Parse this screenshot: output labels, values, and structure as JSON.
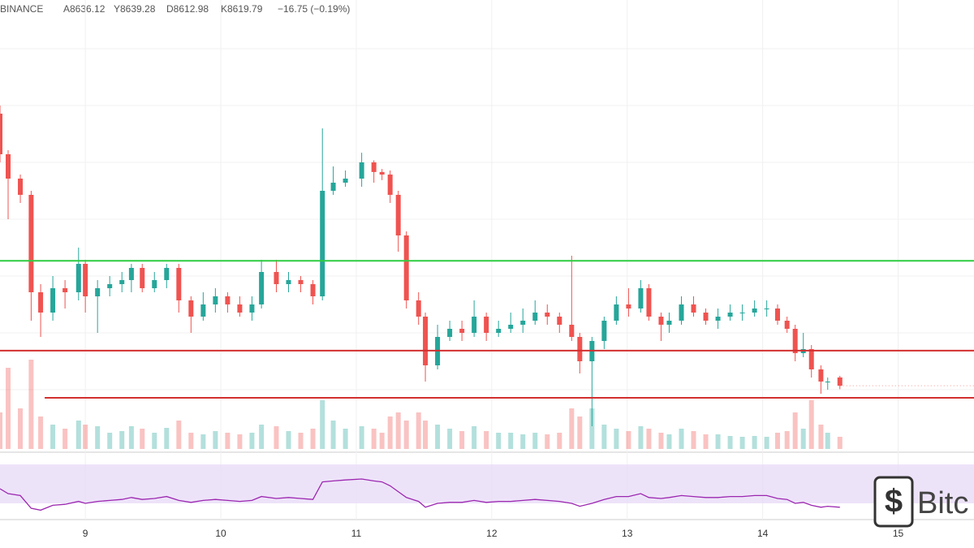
{
  "exchange": "BINANCE",
  "ohlc_header": {
    "open": "A8636.12",
    "high": "Y8639.28",
    "low": "D8612.98",
    "close": "K8619.79",
    "change": "−16.75 (−0.19%)"
  },
  "logo_text": "Bitc",
  "chart_data": {
    "type": "candlestick",
    "up_color": "#26a69a",
    "down_color": "#ef5350",
    "xlim": [
      8.37,
      15.56
    ],
    "xticks": [
      9,
      10,
      11,
      12,
      13,
      14,
      15
    ],
    "ylim": [
      8492,
      9380
    ],
    "grid": true,
    "x": [
      8.37,
      8.43,
      8.52,
      8.6,
      8.67,
      8.76,
      8.85,
      8.95,
      9.0,
      9.09,
      9.18,
      9.27,
      9.34,
      9.42,
      9.51,
      9.6,
      9.69,
      9.78,
      9.87,
      9.96,
      10.05,
      10.14,
      10.23,
      10.3,
      10.41,
      10.5,
      10.59,
      10.68,
      10.75,
      10.83,
      10.92,
      11.04,
      11.13,
      11.19,
      11.25,
      11.31,
      11.37,
      11.46,
      11.51,
      11.6,
      11.69,
      11.78,
      11.87,
      11.96,
      12.05,
      12.14,
      12.23,
      12.32,
      12.41,
      12.5,
      12.59,
      12.65,
      12.74,
      12.83,
      12.92,
      13.01,
      13.1,
      13.16,
      13.25,
      13.31,
      13.4,
      13.49,
      13.58,
      13.67,
      13.76,
      13.85,
      13.94,
      14.03,
      14.11,
      14.18,
      14.24,
      14.3,
      14.36,
      14.43,
      14.48,
      14.57
    ],
    "open": [
      9156,
      9076,
      9028,
      8996,
      8804,
      8764,
      8812,
      8804,
      8860,
      8796,
      8812,
      8820,
      8828,
      8852,
      8812,
      8828,
      8852,
      8788,
      8756,
      8780,
      8796,
      8780,
      8764,
      8780,
      8844,
      8820,
      8828,
      8820,
      8796,
      9004,
      9020,
      9028,
      9060,
      9041,
      9036,
      8996,
      8916,
      8788,
      8756,
      8660,
      8716,
      8732,
      8724,
      8756,
      8724,
      8732,
      8740,
      8748,
      8764,
      8756,
      8740,
      8716,
      8668,
      8708,
      8748,
      8780,
      8772,
      8812,
      8756,
      8740,
      8748,
      8780,
      8764,
      8748,
      8756,
      8764,
      8764,
      8772,
      8772,
      8748,
      8732,
      8684,
      8692,
      8652,
      8628,
      8636.12
    ],
    "high": [
      9172,
      9084,
      9036,
      9004,
      8820,
      8836,
      8828,
      8892,
      8868,
      8828,
      8836,
      8844,
      8860,
      8860,
      8844,
      8860,
      8860,
      8796,
      8804,
      8812,
      8804,
      8796,
      8796,
      8868,
      8868,
      8844,
      8836,
      8828,
      9127,
      9052,
      9044,
      9079,
      9064,
      9047,
      9044,
      9004,
      8924,
      8804,
      8764,
      8740,
      8748,
      8748,
      8788,
      8764,
      8748,
      8764,
      8772,
      8788,
      8780,
      8764,
      8876,
      8724,
      8716,
      8756,
      8796,
      8812,
      8828,
      8820,
      8764,
      8764,
      8796,
      8796,
      8772,
      8772,
      8780,
      8780,
      8788,
      8788,
      8780,
      8756,
      8740,
      8724,
      8700,
      8660,
      8636,
      8639.28
    ],
    "low": [
      9060,
      8948,
      8980,
      8748,
      8716,
      8748,
      8772,
      8788,
      8764,
      8724,
      8796,
      8804,
      8804,
      8804,
      8804,
      8812,
      8764,
      8724,
      8748,
      8764,
      8764,
      8756,
      8748,
      8772,
      8804,
      8804,
      8804,
      8780,
      8788,
      8996,
      9012,
      9012,
      9020,
      9025,
      8980,
      8884,
      8772,
      8740,
      8628,
      8652,
      8708,
      8708,
      8716,
      8708,
      8716,
      8724,
      8724,
      8740,
      8740,
      8724,
      8708,
      8644,
      8540,
      8692,
      8740,
      8756,
      8764,
      8748,
      8708,
      8724,
      8740,
      8756,
      8740,
      8732,
      8748,
      8748,
      8756,
      8756,
      8740,
      8724,
      8668,
      8676,
      8636,
      8604,
      8612,
      8612.98
    ],
    "close": [
      9076,
      9028,
      8996,
      8804,
      8764,
      8812,
      8804,
      8860,
      8796,
      8812,
      8820,
      8828,
      8852,
      8812,
      8828,
      8852,
      8788,
      8756,
      8780,
      8796,
      8780,
      8764,
      8780,
      8844,
      8820,
      8828,
      8820,
      8796,
      9004,
      9020,
      9028,
      9060,
      9041,
      9036,
      8996,
      8916,
      8788,
      8756,
      8660,
      8716,
      8732,
      8724,
      8756,
      8724,
      8732,
      8740,
      8748,
      8764,
      8756,
      8740,
      8716,
      8668,
      8708,
      8748,
      8780,
      8772,
      8812,
      8756,
      8740,
      8748,
      8780,
      8764,
      8748,
      8756,
      8764,
      8764,
      8772,
      8772,
      8748,
      8732,
      8684,
      8692,
      8652,
      8628,
      8628,
      8619.79
    ],
    "volume": [
      45,
      100,
      50,
      110,
      40,
      30,
      25,
      35,
      30,
      28,
      20,
      22,
      28,
      25,
      20,
      26,
      35,
      20,
      18,
      22,
      20,
      18,
      20,
      30,
      28,
      22,
      20,
      25,
      60,
      35,
      25,
      28,
      25,
      20,
      40,
      45,
      35,
      45,
      35,
      30,
      25,
      22,
      28,
      22,
      20,
      20,
      18,
      20,
      18,
      20,
      50,
      40,
      50,
      30,
      25,
      22,
      28,
      25,
      20,
      18,
      25,
      22,
      18,
      18,
      16,
      15,
      16,
      15,
      20,
      22,
      45,
      25,
      60,
      30,
      20,
      15
    ],
    "volume_lim": [
      0,
      120
    ],
    "rsi": [
      45,
      40,
      38,
      25,
      23,
      28,
      29,
      32,
      30,
      32,
      33,
      34,
      36,
      34,
      35,
      37,
      33,
      31,
      33,
      34,
      33,
      32,
      33,
      37,
      35,
      36,
      35,
      34,
      52,
      53,
      54,
      55,
      53,
      52,
      48,
      42,
      36,
      32,
      26,
      30,
      31,
      31,
      33,
      31,
      32,
      32,
      33,
      34,
      33,
      32,
      30,
      27,
      30,
      34,
      37,
      37,
      40,
      36,
      35,
      36,
      38,
      37,
      36,
      36,
      37,
      37,
      38,
      38,
      35,
      34,
      30,
      31,
      28,
      26,
      27,
      26
    ],
    "rsi_lim": [
      20,
      80
    ],
    "rsi_band": [
      30,
      70
    ],
    "rsi_color": "#9c27b0",
    "levels": [
      {
        "value": 8866,
        "color": "#2ecc40",
        "x_start": 8.37
      },
      {
        "value": 8689,
        "color": "#d32f2f",
        "x_start": 8.37
      },
      {
        "value": 8596,
        "color": "#d32f2f",
        "x_start": 8.7
      }
    ]
  }
}
